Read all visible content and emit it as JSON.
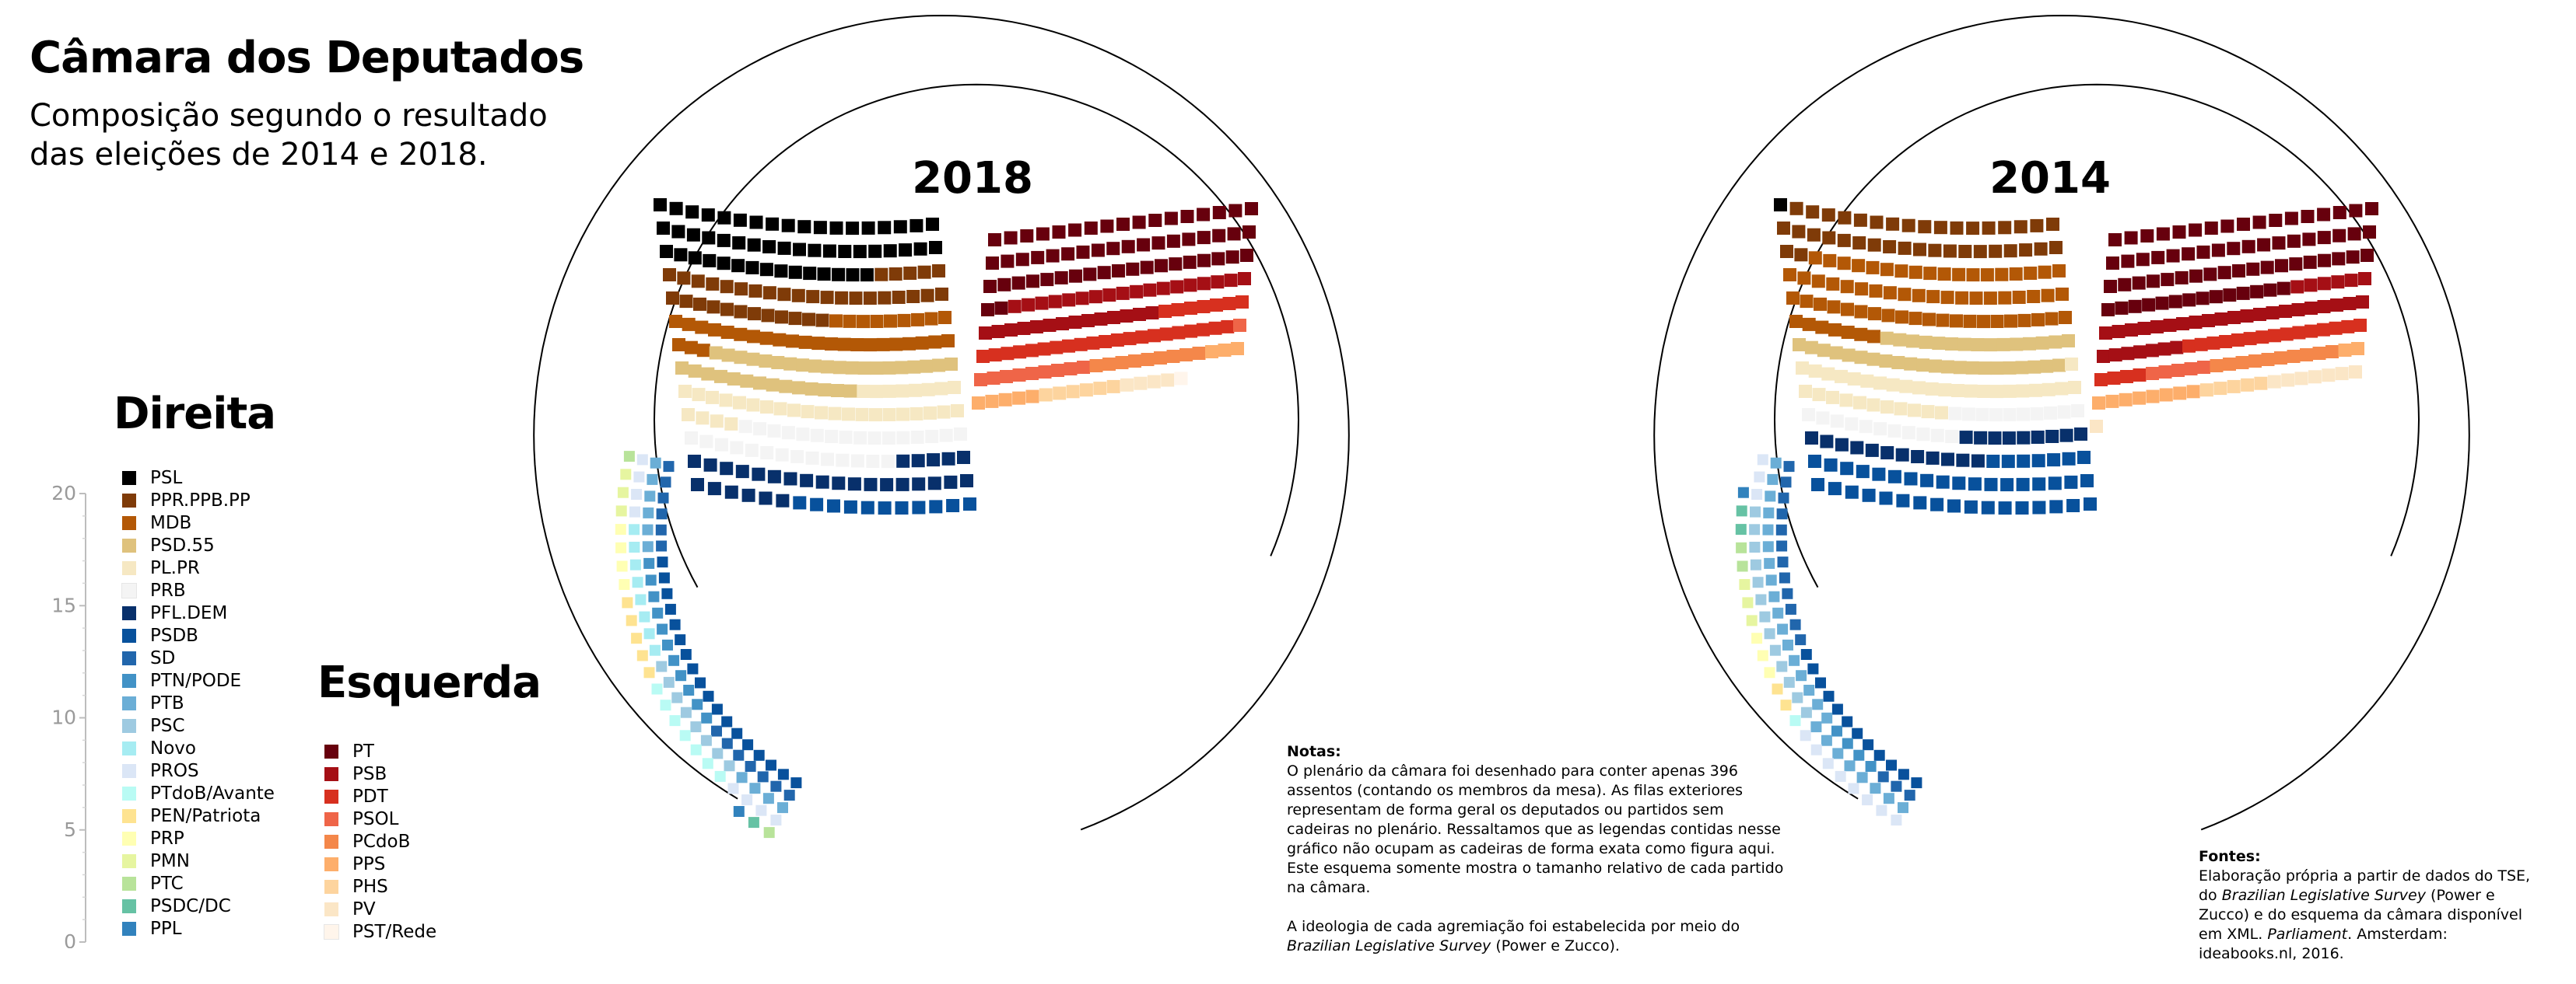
{
  "header": {
    "title": "Câmara dos Deputados",
    "subtitle": "Composição segundo o resultado das eleições de 2014 e 2018."
  },
  "legend": {
    "direita_title": "Direita",
    "esquerda_title": "Esquerda",
    "direita": [
      {
        "name": "PSL",
        "color": "#000000"
      },
      {
        "name": "PPR.PPB.PP",
        "color": "#7f3b08"
      },
      {
        "name": "MDB",
        "color": "#b35806"
      },
      {
        "name": "PSD.55",
        "color": "#dfc27d"
      },
      {
        "name": "PL.PR",
        "color": "#f6e8c3"
      },
      {
        "name": "PRB",
        "color": "#f4f4f4"
      },
      {
        "name": "PFL.DEM",
        "color": "#08306b"
      },
      {
        "name": "PSDB",
        "color": "#08519c"
      },
      {
        "name": "SD",
        "color": "#2166ac"
      },
      {
        "name": "PTN/PODE",
        "color": "#4292c6"
      },
      {
        "name": "PTB",
        "color": "#6baed6"
      },
      {
        "name": "PSC",
        "color": "#9ecae1"
      },
      {
        "name": "Novo",
        "color": "#a6ecf2"
      },
      {
        "name": "PROS",
        "color": "#dbe6f6"
      },
      {
        "name": "PTdoB/Avante",
        "color": "#b9fbf4"
      },
      {
        "name": "PEN/Patriota",
        "color": "#fee391"
      },
      {
        "name": "PRP",
        "color": "#ffffb3"
      },
      {
        "name": "PMN",
        "color": "#e6f5a0"
      },
      {
        "name": "PTC",
        "color": "#b8e39a"
      },
      {
        "name": "PSDC/DC",
        "color": "#66c2a4"
      },
      {
        "name": "PPL",
        "color": "#3182bd"
      }
    ],
    "esquerda": [
      {
        "name": "PT",
        "color": "#67000d"
      },
      {
        "name": "PSB",
        "color": "#a50f15"
      },
      {
        "name": "PDT",
        "color": "#d7301f"
      },
      {
        "name": "PSOL",
        "color": "#ef6548"
      },
      {
        "name": "PCdoB",
        "color": "#f4874a"
      },
      {
        "name": "PPS",
        "color": "#fdae6b"
      },
      {
        "name": "PHS",
        "color": "#fdd49e"
      },
      {
        "name": "PV",
        "color": "#fbe6c6"
      },
      {
        "name": "PST/Rede",
        "color": "#fff5eb"
      }
    ]
  },
  "chart_data": {
    "type": "parliament",
    "ideology_scale": {
      "ticks": [
        0,
        5,
        10,
        15,
        20
      ],
      "range": [
        0,
        20
      ]
    },
    "chambers": [
      {
        "year": "2018",
        "seats": {
          "PSL": 52,
          "PPR.PPB.PP": 37,
          "MDB": 34,
          "PSD.55": 34,
          "PL.PR": 33,
          "PRB": 30,
          "PFL.DEM": 29,
          "PSDB": 29,
          "SD": 13,
          "PTN/PODE": 11,
          "PTB": 10,
          "PSC": 8,
          "Novo": 8,
          "PROS": 8,
          "PTdoB/Avante": 7,
          "PEN/Patriota": 5,
          "PRP": 4,
          "PMN": 3,
          "PTC": 2,
          "PSDC/DC": 1,
          "PPL": 1,
          "PT": 56,
          "PSB": 32,
          "PDT": 28,
          "PSOL": 10,
          "PCdoB": 9,
          "PPS": 8,
          "PHS": 6,
          "PV": 4,
          "PST/Rede": 1
        }
      },
      {
        "year": "2014",
        "seats": {
          "PSL": 1,
          "PPR.PPB.PP": 38,
          "MDB": 66,
          "PSD.55": 37,
          "PL.PR": 34,
          "PRB": 21,
          "PFL.DEM": 21,
          "PSDB": 54,
          "SD": 15,
          "PTN/PODE": 4,
          "PTB": 25,
          "PSC": 13,
          "Novo": 0,
          "PROS": 11,
          "PTdoB/Avante": 1,
          "PEN/Patriota": 2,
          "PRP": 3,
          "PMN": 3,
          "PTC": 2,
          "PSDC/DC": 2,
          "PPL": 1,
          "PT": 68,
          "PSB": 34,
          "PDT": 19,
          "PSOL": 5,
          "PCdoB": 10,
          "PPS": 10,
          "PHS": 5,
          "PV": 8,
          "PST/Rede": 0
        }
      }
    ]
  },
  "notes": {
    "label": "Notas:",
    "paragraph1": "O plenário da câmara foi desenhado para conter apenas 396 assentos (contando os membros da mesa). As filas exteriores representam de forma geral os deputados ou partidos sem cadeiras no plenário. Ressaltamos que as legendas contidas nesse gráfico não ocupam as cadeiras de forma exata como figura aqui. Este esquema somente mostra o tamanho relativo de cada partido na câmara.",
    "paragraph2_text": "A ideologia de cada agremiação foi estabelecida por meio do",
    "paragraph2_italic": "Brazilian Legislative Survey",
    "paragraph2_tail": "(Power e Zucco)."
  },
  "sources": {
    "label": "Fontes:",
    "text1": "Elaboração própria a partir de dados do TSE, do",
    "italic1": "Brazilian Legislative Survey",
    "text2": "(Power e Zucco) e do esquema da câmara disponível em XML.",
    "italic2": "Parliament",
    "text3": ". Amsterdam: ideabooks.nl, 2016."
  }
}
